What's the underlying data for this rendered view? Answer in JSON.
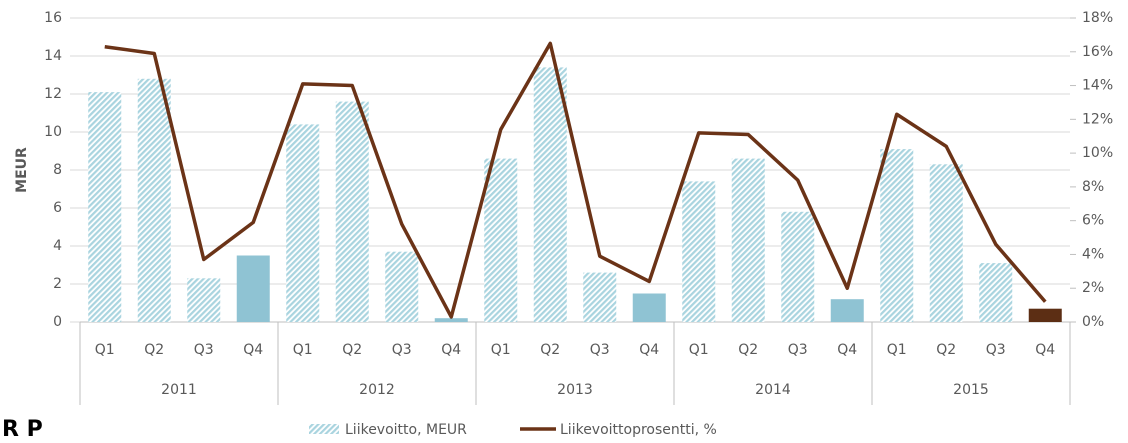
{
  "chart_data": {
    "type": "bar_line",
    "y_label": "MEUR",
    "logo": "R P",
    "categories": [
      "Q1",
      "Q2",
      "Q3",
      "Q4",
      "Q1",
      "Q2",
      "Q3",
      "Q4",
      "Q1",
      "Q2",
      "Q3",
      "Q4",
      "Q1",
      "Q2",
      "Q3",
      "Q4",
      "Q1",
      "Q2",
      "Q3",
      "Q4"
    ],
    "years": [
      "2011",
      "2012",
      "2013",
      "2014",
      "2015"
    ],
    "series": [
      {
        "name": "Liikevoitto, MEUR",
        "type": "bar",
        "color": "#a9d4df",
        "hatched": true,
        "colors": [
          "#a9d4df",
          "#a9d4df",
          "#a9d4df",
          "#8fc3d3",
          "#a9d4df",
          "#a9d4df",
          "#a9d4df",
          "#8fc3d3",
          "#a9d4df",
          "#a9d4df",
          "#a9d4df",
          "#8fc3d3",
          "#a9d4df",
          "#a9d4df",
          "#a9d4df",
          "#8fc3d3",
          "#a9d4df",
          "#a9d4df",
          "#a9d4df",
          "#5c2e14"
        ],
        "values": [
          12.1,
          12.8,
          2.3,
          3.5,
          10.4,
          11.6,
          3.7,
          0.2,
          8.6,
          13.4,
          2.6,
          1.5,
          7.4,
          8.6,
          5.8,
          1.2,
          9.1,
          8.3,
          3.1,
          0.7
        ]
      },
      {
        "name": "Liikevoittoprosentti, %",
        "type": "line",
        "axis": "y2",
        "color": "#6b3317",
        "values": [
          16.3,
          15.9,
          3.7,
          5.9,
          14.1,
          14.0,
          5.8,
          0.3,
          11.4,
          16.5,
          3.9,
          2.4,
          11.2,
          11.1,
          8.4,
          2.0,
          12.3,
          10.4,
          4.6,
          1.2
        ]
      }
    ],
    "ylim": [
      0,
      16
    ],
    "yticks": [
      0,
      2,
      4,
      6,
      8,
      10,
      12,
      14,
      16
    ],
    "y2lim": [
      0,
      18
    ],
    "y2ticks": [
      {
        "value": 0,
        "label": "0%"
      },
      {
        "value": 2,
        "label": "2%"
      },
      {
        "value": 4,
        "label": "4%"
      },
      {
        "value": 6,
        "label": "6%"
      },
      {
        "value": 8,
        "label": "8%"
      },
      {
        "value": 10,
        "label": "10%"
      },
      {
        "value": 12,
        "label": "12%"
      },
      {
        "value": 14,
        "label": "14%"
      },
      {
        "value": 16,
        "label": "16%"
      },
      {
        "value": 18,
        "label": "18%"
      }
    ],
    "grid": true
  }
}
